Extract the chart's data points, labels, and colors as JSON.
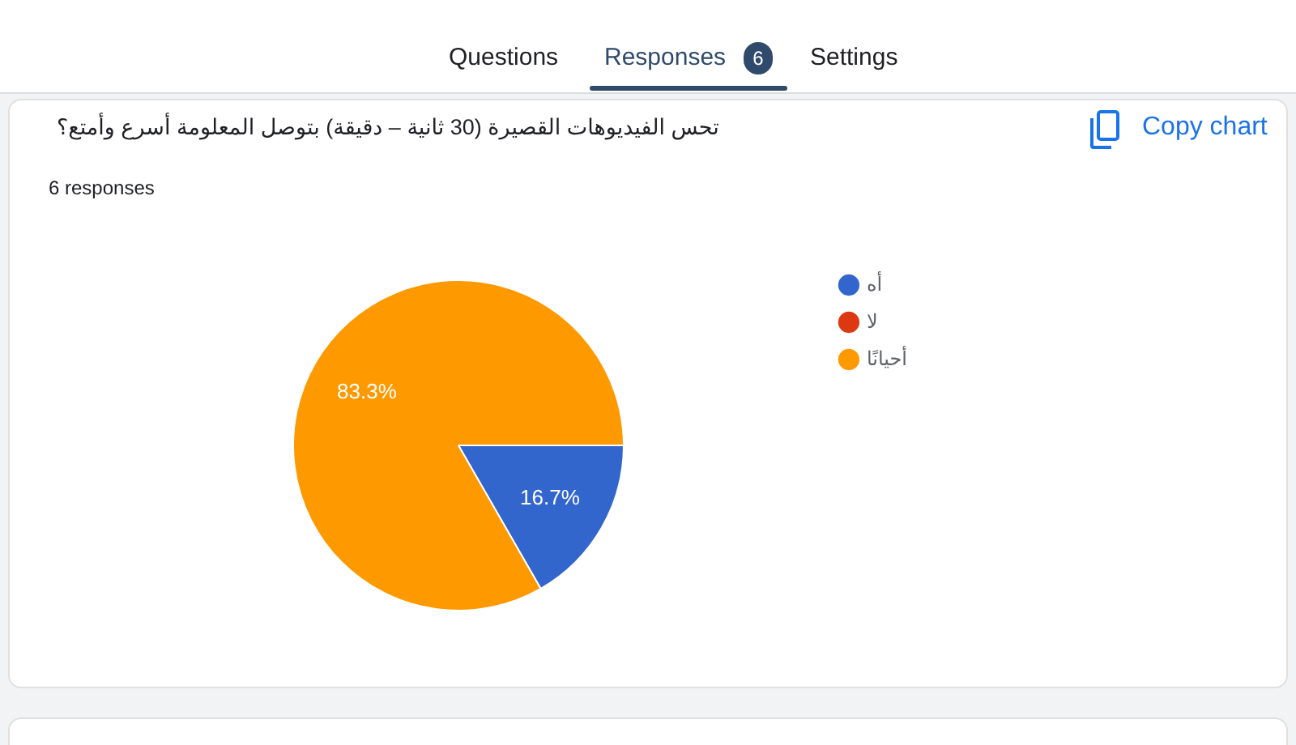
{
  "chart_data": {
    "type": "pie",
    "title": "تحس الفيديوهات القصيرة (30 ثانية – دقيقة) بتوصل المعلومة أسرع وأمتع؟",
    "subtitle": "6 responses",
    "categories": [
      "أه",
      "لا",
      "أحيانًا"
    ],
    "values": [
      16.7,
      0,
      83.3
    ],
    "colors": [
      "#3366cc",
      "#dc3912",
      "#ff9900"
    ],
    "value_labels": [
      "16.7%",
      null,
      "83.3%"
    ],
    "legend": "top right",
    "annotations": [
      "Questions",
      "Responses",
      "6",
      "Settings",
      "Copy chart"
    ]
  }
}
